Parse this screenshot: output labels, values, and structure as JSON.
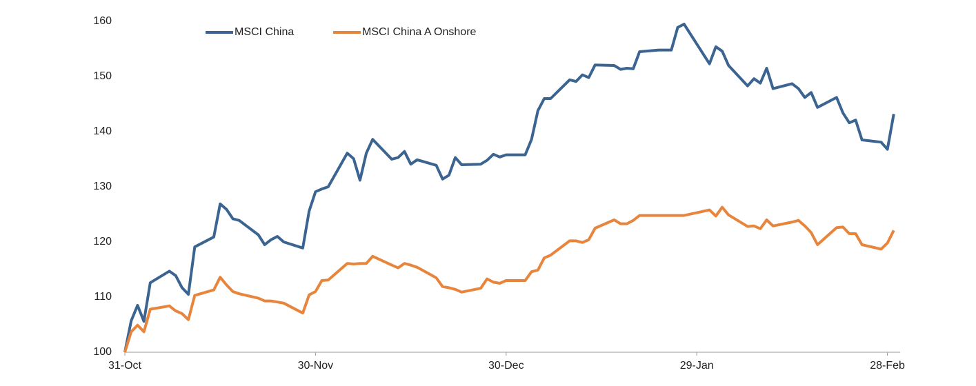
{
  "chart_data": {
    "type": "line",
    "x": [
      0,
      1,
      2,
      3,
      4,
      7,
      8,
      9,
      10,
      11,
      14,
      15,
      16,
      17,
      18,
      21,
      22,
      23,
      24,
      25,
      28,
      29,
      30,
      31,
      32,
      35,
      36,
      37,
      38,
      39,
      42,
      43,
      44,
      45,
      46,
      49,
      50,
      51,
      52,
      53,
      56,
      57,
      58,
      59,
      60,
      63,
      64,
      65,
      66,
      67,
      70,
      71,
      72,
      73,
      74,
      77,
      78,
      79,
      80,
      81,
      84,
      85,
      86,
      87,
      88,
      92,
      93,
      94,
      95,
      98,
      99,
      100,
      101,
      102,
      105,
      106,
      107,
      108,
      109,
      112,
      113,
      114,
      115,
      116,
      119,
      120,
      121
    ],
    "series": [
      {
        "name": "MSCI China",
        "color": "#3b6491",
        "values": [
          100,
          105.7,
          108.5,
          105.6,
          112.6,
          114.7,
          113.9,
          111.7,
          110.5,
          119.1,
          120.9,
          126.9,
          125.9,
          124.2,
          123.9,
          121.3,
          119.5,
          120.4,
          121.0,
          120.0,
          118.9,
          125.6,
          129.1,
          129.6,
          130.0,
          136.1,
          135.1,
          131.2,
          136.1,
          138.6,
          135.0,
          135.3,
          136.4,
          134.1,
          134.9,
          133.9,
          131.4,
          132.1,
          135.3,
          134.0,
          134.1,
          134.8,
          135.9,
          135.4,
          135.8,
          135.8,
          138.6,
          143.8,
          146.0,
          146.0,
          149.4,
          149.1,
          150.3,
          149.8,
          152.1,
          152.0,
          151.3,
          151.5,
          151.4,
          154.5,
          154.8,
          154.8,
          154.8,
          158.9,
          159.5,
          152.3,
          155.4,
          154.6,
          152.0,
          148.3,
          149.6,
          148.8,
          151.5,
          147.8,
          148.7,
          147.8,
          146.2,
          147.1,
          144.4,
          146.2,
          143.4,
          141.6,
          142.1,
          138.5,
          138.1,
          136.8,
          143.2
        ]
      },
      {
        "name": "MSCI China A Onshore",
        "color": "#e8853d",
        "values": [
          100,
          103.7,
          104.9,
          103.7,
          107.8,
          108.4,
          107.5,
          107.0,
          105.9,
          110.3,
          111.3,
          113.6,
          112.2,
          111.0,
          110.6,
          109.8,
          109.3,
          109.3,
          109.1,
          108.9,
          107.1,
          110.4,
          111.0,
          113.0,
          113.1,
          116.1,
          116.0,
          116.1,
          116.1,
          117.4,
          115.8,
          115.3,
          116.1,
          115.8,
          115.4,
          113.5,
          111.9,
          111.7,
          111.4,
          110.9,
          111.6,
          113.3,
          112.7,
          112.5,
          113.0,
          113.0,
          114.6,
          114.9,
          117.1,
          117.6,
          120.2,
          120.2,
          119.9,
          120.4,
          122.5,
          124.0,
          123.3,
          123.3,
          123.9,
          124.8,
          124.8,
          124.8,
          124.8,
          124.8,
          124.8,
          125.8,
          124.7,
          126.3,
          124.9,
          122.8,
          122.9,
          122.4,
          124.0,
          122.9,
          123.6,
          123.9,
          122.9,
          121.7,
          119.5,
          122.6,
          122.7,
          121.5,
          121.5,
          119.5,
          118.7,
          119.8,
          122.1
        ]
      }
    ],
    "xlim": [
      0,
      122
    ],
    "xticks": [
      {
        "value": 0,
        "label": "31-Oct"
      },
      {
        "value": 30,
        "label": "30-Nov"
      },
      {
        "value": 60,
        "label": "30-Dec"
      },
      {
        "value": 90,
        "label": "29-Jan"
      },
      {
        "value": 120,
        "label": "28-Feb"
      }
    ],
    "ylim": [
      100,
      160
    ],
    "yticks": [
      100,
      110,
      120,
      130,
      140,
      150,
      160
    ],
    "grid": false
  }
}
